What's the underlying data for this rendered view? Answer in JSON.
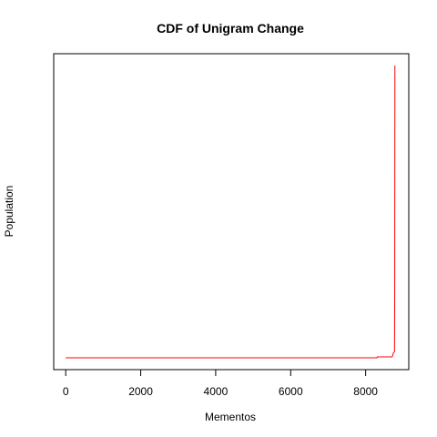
{
  "chart_data": {
    "type": "line",
    "title": "CDF of Unigram Change",
    "xlabel": "Mementos",
    "ylabel": "Population",
    "xlim": [
      -320,
      9150
    ],
    "ylim": [
      0,
      1
    ],
    "x_ticks": [
      0,
      2000,
      4000,
      6000,
      8000
    ],
    "y_ticks_shown": false,
    "grid": false,
    "series": [
      {
        "color": "#ff0000",
        "x": [
          0,
          8300,
          8310,
          8700,
          8720,
          8730,
          8770,
          8775,
          8780
        ],
        "y": [
          0.0,
          0.0,
          0.003,
          0.003,
          0.006,
          0.014,
          0.022,
          0.24,
          1.0
        ]
      }
    ]
  }
}
